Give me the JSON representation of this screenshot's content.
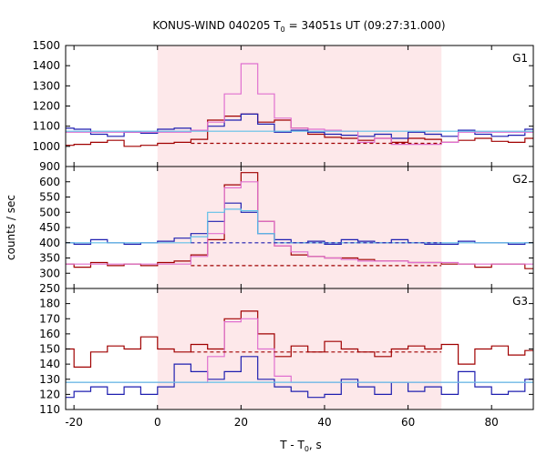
{
  "chart_data": {
    "type": "line",
    "title": "KONUS-WIND 040205 T",
    "title_sub": "0",
    "title_rest": " = 34051s UT (09:27:31.000)",
    "ylabel": "counts / sec",
    "xlabel_main": "T - T",
    "xlabel_sub": "0",
    "xlabel_rest": ", s",
    "xlim": [
      -22,
      90
    ],
    "x_ticks": [
      -20,
      0,
      20,
      40,
      60,
      80
    ],
    "x_tick_labels": [
      "-20",
      "0",
      "20",
      "40",
      "60",
      "80"
    ],
    "shaded_interval": [
      0,
      68
    ],
    "colors": {
      "shade": "#fde8ea",
      "dark_red": "#a00000",
      "blue": "#1f1fb0",
      "pink": "#e070d0",
      "cyan": "#60c0e8"
    },
    "panels": [
      {
        "label": "G1",
        "ylim": [
          900,
          1500
        ],
        "y_ticks": [
          900,
          1000,
          1100,
          1200,
          1300,
          1400,
          1500
        ],
        "y_tick_labels": [
          "900",
          "1000",
          "1100",
          "1200",
          "1300",
          "1400",
          "1500"
        ],
        "bin_edges": [
          -22,
          -20,
          -16,
          -12,
          -8,
          -4,
          0,
          4,
          8,
          12,
          16,
          20,
          24,
          28,
          32,
          36,
          40,
          44,
          48,
          52,
          56,
          60,
          64,
          68,
          72,
          76,
          80,
          84,
          88,
          90
        ],
        "series": [
          {
            "color": "dark_red",
            "style": "step",
            "values": [
              1005,
              1010,
              1020,
              1030,
              1000,
              1005,
              1015,
              1020,
              1035,
              1130,
              1150,
              1160,
              1120,
              1130,
              1090,
              1060,
              1045,
              1040,
              1030,
              1040,
              1020,
              1040,
              1035,
              1020,
              1030,
              1040,
              1025,
              1020,
              1040
            ]
          },
          {
            "color": "blue",
            "style": "step",
            "values": [
              1090,
              1085,
              1060,
              1050,
              1070,
              1065,
              1085,
              1090,
              1080,
              1100,
              1130,
              1160,
              1110,
              1070,
              1080,
              1070,
              1060,
              1055,
              1050,
              1060,
              1040,
              1070,
              1060,
              1050,
              1080,
              1060,
              1050,
              1055,
              1085
            ]
          },
          {
            "color": "pink",
            "style": "step",
            "values": [
              1070,
              1070,
              1070,
              1070,
              1070,
              1070,
              1070,
              1070,
              1080,
              1120,
              1260,
              1410,
              1260,
              1140,
              1090,
              1085,
              1080,
              1075,
              1020,
              1040,
              1010,
              1010,
              1010,
              1020,
              1070,
              1070,
              1070,
              1070,
              1070
            ]
          },
          {
            "color": "cyan",
            "style": "line",
            "x": [
              -22,
              90
            ],
            "values": [
              1075,
              1075
            ]
          },
          {
            "color": "dark_red",
            "style": "dashed",
            "x": [
              8,
              68
            ],
            "values": [
              1015,
              1015
            ]
          }
        ]
      },
      {
        "label": "G2",
        "ylim": [
          250,
          650
        ],
        "y_ticks": [
          250,
          300,
          350,
          400,
          450,
          500,
          550,
          600
        ],
        "y_tick_labels": [
          "250",
          "300",
          "350",
          "400",
          "450",
          "500",
          "550",
          "600"
        ],
        "bin_edges": [
          -22,
          -20,
          -16,
          -12,
          -8,
          -4,
          0,
          4,
          8,
          12,
          16,
          20,
          24,
          28,
          32,
          36,
          40,
          44,
          48,
          52,
          56,
          60,
          64,
          68,
          72,
          76,
          80,
          84,
          88,
          90
        ],
        "series": [
          {
            "color": "dark_red",
            "style": "step",
            "values": [
              330,
              320,
              335,
              325,
              330,
              325,
              335,
              340,
              360,
              410,
              590,
              630,
              470,
              390,
              360,
              355,
              350,
              350,
              345,
              340,
              340,
              335,
              335,
              330,
              330,
              320,
              330,
              330,
              315
            ]
          },
          {
            "color": "blue",
            "style": "step",
            "values": [
              400,
              395,
              410,
              400,
              395,
              400,
              405,
              415,
              430,
              470,
              530,
              500,
              430,
              410,
              400,
              405,
              395,
              410,
              405,
              400,
              410,
              400,
              395,
              395,
              405,
              400,
              400,
              395,
              400
            ]
          },
          {
            "color": "pink",
            "style": "step",
            "values": [
              330,
              330,
              330,
              330,
              330,
              330,
              330,
              330,
              355,
              430,
              580,
              600,
              470,
              390,
              370,
              355,
              350,
              345,
              340,
              340,
              340,
              335,
              335,
              335,
              330,
              330,
              330,
              330,
              330
            ]
          },
          {
            "color": "cyan",
            "style": "step",
            "values": [
              400,
              400,
              400,
              400,
              400,
              400,
              400,
              400,
              420,
              500,
              510,
              505,
              430,
              400,
              400,
              400,
              400,
              400,
              400,
              400,
              400,
              400,
              400,
              400,
              400,
              400,
              400,
              400,
              400
            ]
          },
          {
            "color": "blue",
            "style": "dashed",
            "x": [
              8,
              68
            ],
            "values": [
              400,
              400
            ]
          },
          {
            "color": "dark_red",
            "style": "dashed",
            "x": [
              8,
              68
            ],
            "values": [
              325,
              325
            ]
          }
        ]
      },
      {
        "label": "G3",
        "ylim": [
          110,
          190
        ],
        "y_ticks": [
          110,
          120,
          130,
          140,
          150,
          160,
          170,
          180
        ],
        "y_tick_labels": [
          "110",
          "120",
          "130",
          "140",
          "150",
          "160",
          "170",
          "180"
        ],
        "bin_edges": [
          -22,
          -20,
          -16,
          -12,
          -8,
          -4,
          0,
          4,
          8,
          12,
          16,
          20,
          24,
          28,
          32,
          36,
          40,
          44,
          48,
          52,
          56,
          60,
          64,
          68,
          72,
          76,
          80,
          84,
          88,
          90
        ],
        "series": [
          {
            "color": "dark_red",
            "style": "step",
            "values": [
              150,
              138,
              148,
              152,
              150,
              158,
              150,
              148,
              153,
              150,
              170,
              175,
              160,
              145,
              152,
              148,
              155,
              150,
              148,
              145,
              150,
              152,
              150,
              153,
              140,
              150,
              152,
              146,
              149
            ]
          },
          {
            "color": "blue",
            "style": "step",
            "values": [
              118,
              122,
              125,
              120,
              125,
              120,
              125,
              140,
              135,
              130,
              135,
              145,
              130,
              125,
              122,
              118,
              120,
              130,
              125,
              120,
              128,
              122,
              125,
              120,
              135,
              125,
              120,
              122,
              130
            ]
          },
          {
            "color": "pink",
            "style": "step",
            "values": [
              128,
              128,
              128,
              128,
              128,
              128,
              128,
              128,
              128,
              145,
              168,
              170,
              150,
              132,
              128,
              128,
              128,
              128,
              128,
              128,
              128,
              128,
              128,
              128,
              128,
              128,
              128,
              128,
              128
            ]
          },
          {
            "color": "cyan",
            "style": "line",
            "x": [
              -22,
              90
            ],
            "values": [
              128,
              128
            ]
          },
          {
            "color": "dark_red",
            "style": "dashed",
            "x": [
              8,
              68
            ],
            "values": [
              148,
              148
            ]
          }
        ]
      }
    ]
  }
}
